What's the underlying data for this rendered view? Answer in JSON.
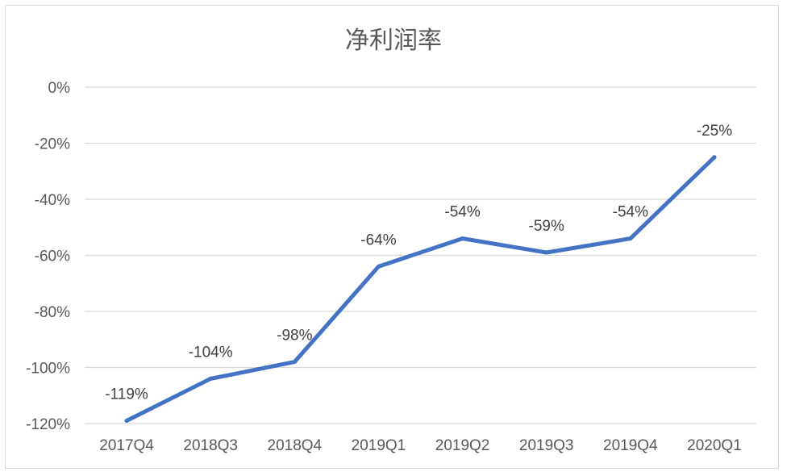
{
  "chart_data": {
    "type": "line",
    "title": "净利润率",
    "xlabel": "",
    "ylabel": "",
    "categories": [
      "2017Q4",
      "2018Q3",
      "2018Q4",
      "2019Q1",
      "2019Q2",
      "2019Q3",
      "2019Q4",
      "2020Q1"
    ],
    "series": [
      {
        "values": [
          -119,
          -104,
          -98,
          -64,
          -54,
          -59,
          -54,
          -25
        ],
        "data_labels": [
          "-119%",
          "-104%",
          "-98%",
          "-64%",
          "-54%",
          "-59%",
          "-54%",
          "-25%"
        ],
        "color": "#4472c4"
      }
    ],
    "ylim": [
      -120,
      0
    ],
    "yticks": [
      0,
      -20,
      -40,
      -60,
      -80,
      -100,
      -120
    ],
    "ytick_labels": [
      "0%",
      "-20%",
      "-40%",
      "-60%",
      "-80%",
      "-100%",
      "-120%"
    ],
    "grid": true,
    "legend": "none",
    "colors": {
      "line": "#4472c4",
      "grid": "#d9d9d9",
      "text": "#595959"
    }
  }
}
